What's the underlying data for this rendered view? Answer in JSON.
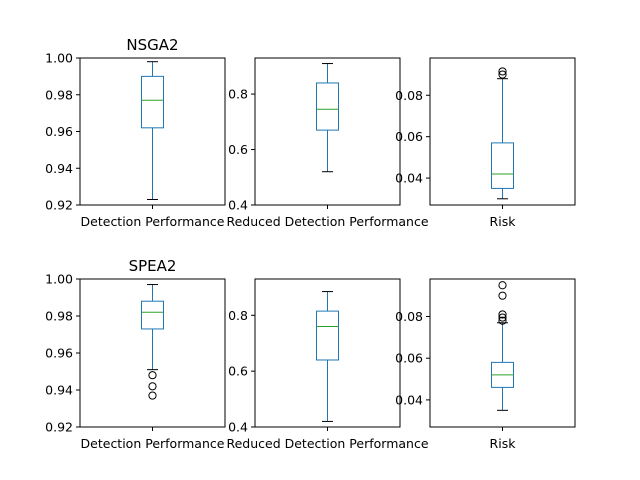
{
  "figure": {
    "titles": [
      "NSGA2",
      "SPEA2"
    ]
  },
  "colors": {
    "box": "#1f77b4",
    "median": "#2ca02c",
    "flier": "#000000",
    "frame": "#000000"
  },
  "chart_data": [
    {
      "type": "box",
      "title": "NSGA2",
      "category": "Detection Performance",
      "ylim": [
        0.92,
        1.0
      ],
      "yticks": [
        "0.92",
        "0.94",
        "0.96",
        "0.98",
        "1.00"
      ],
      "stats": {
        "whislo": 0.923,
        "q1": 0.962,
        "med": 0.977,
        "q3": 0.99,
        "whishi": 0.998
      },
      "fliers": []
    },
    {
      "type": "box",
      "title": "",
      "category": "Reduced Detection Performance",
      "ylim": [
        0.4,
        0.93
      ],
      "yticks": [
        "0.4",
        "0.6",
        "0.8"
      ],
      "stats": {
        "whislo": 0.52,
        "q1": 0.67,
        "med": 0.745,
        "q3": 0.84,
        "whishi": 0.91
      },
      "fliers": []
    },
    {
      "type": "box",
      "title": "",
      "category": "Risk",
      "ylim": [
        0.027,
        0.098
      ],
      "yticks": [
        "0.04",
        "0.06",
        "0.08"
      ],
      "stats": {
        "whislo": 0.03,
        "q1": 0.035,
        "med": 0.042,
        "q3": 0.057,
        "whishi": 0.088
      },
      "fliers": [
        0.09,
        0.0915
      ]
    },
    {
      "type": "box",
      "title": "SPEA2",
      "category": "Detection Performance",
      "ylim": [
        0.92,
        1.0
      ],
      "yticks": [
        "0.92",
        "0.94",
        "0.96",
        "0.98",
        "1.00"
      ],
      "stats": {
        "whislo": 0.951,
        "q1": 0.973,
        "med": 0.982,
        "q3": 0.988,
        "whishi": 0.997
      },
      "fliers": [
        0.948,
        0.942,
        0.937
      ]
    },
    {
      "type": "box",
      "title": "",
      "category": "Reduced Detection Performance",
      "ylim": [
        0.4,
        0.93
      ],
      "yticks": [
        "0.4",
        "0.6",
        "0.8"
      ],
      "stats": {
        "whislo": 0.42,
        "q1": 0.64,
        "med": 0.76,
        "q3": 0.815,
        "whishi": 0.885
      },
      "fliers": []
    },
    {
      "type": "box",
      "title": "",
      "category": "Risk",
      "ylim": [
        0.027,
        0.098
      ],
      "yticks": [
        "0.04",
        "0.06",
        "0.08"
      ],
      "stats": {
        "whislo": 0.035,
        "q1": 0.046,
        "med": 0.052,
        "q3": 0.058,
        "whishi": 0.077
      },
      "fliers": [
        0.078,
        0.0795,
        0.081,
        0.09,
        0.095
      ]
    }
  ]
}
